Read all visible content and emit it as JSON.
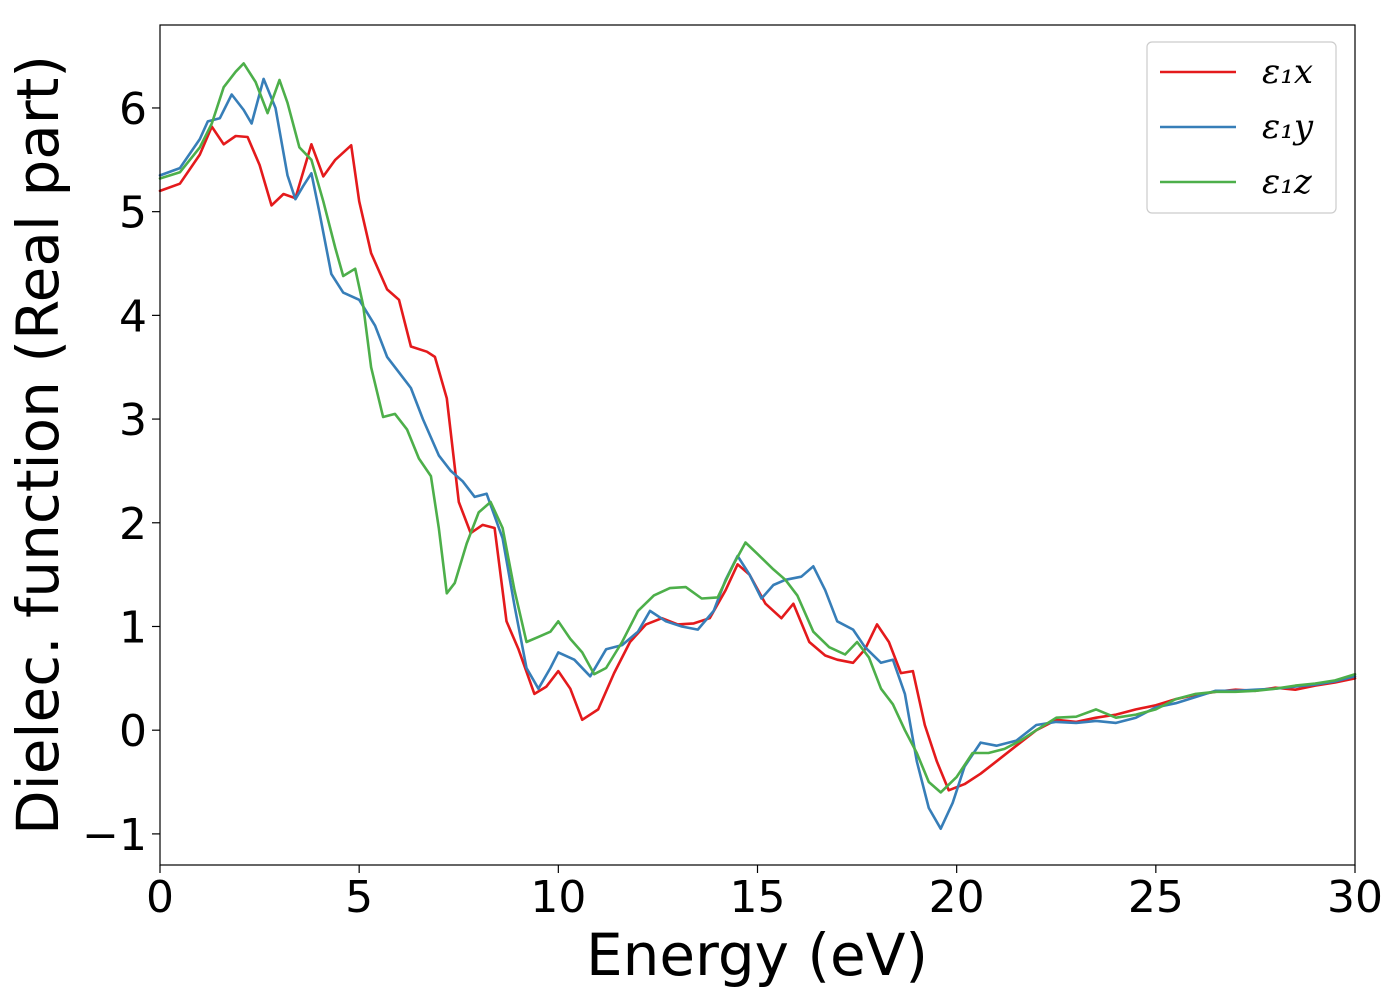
{
  "chart_data": {
    "type": "line",
    "title": "",
    "xlabel": "Energy (eV)",
    "ylabel": "Dielec. function (Real part)",
    "xlim": [
      0,
      30
    ],
    "ylim": [
      -1.3,
      6.8
    ],
    "xticks": [
      0,
      5,
      10,
      15,
      20,
      25,
      30
    ],
    "xtick_labels": [
      "0",
      "5",
      "10",
      "15",
      "20",
      "25",
      "30"
    ],
    "yticks": [
      -1,
      0,
      1,
      2,
      3,
      4,
      5,
      6
    ],
    "ytick_labels": [
      "−1",
      "0",
      "1",
      "2",
      "3",
      "4",
      "5",
      "6"
    ],
    "grid": false,
    "legend_position": "top-right",
    "series": [
      {
        "name": "ε₁x",
        "color": "#e41a1c",
        "points": [
          [
            0,
            5.2
          ],
          [
            0.5,
            5.27
          ],
          [
            1.0,
            5.55
          ],
          [
            1.3,
            5.82
          ],
          [
            1.6,
            5.65
          ],
          [
            1.9,
            5.73
          ],
          [
            2.2,
            5.72
          ],
          [
            2.5,
            5.45
          ],
          [
            2.8,
            5.06
          ],
          [
            3.1,
            5.17
          ],
          [
            3.4,
            5.13
          ],
          [
            3.8,
            5.65
          ],
          [
            4.1,
            5.34
          ],
          [
            4.4,
            5.5
          ],
          [
            4.8,
            5.64
          ],
          [
            5.0,
            5.1
          ],
          [
            5.3,
            4.6
          ],
          [
            5.7,
            4.25
          ],
          [
            6.0,
            4.15
          ],
          [
            6.3,
            3.7
          ],
          [
            6.7,
            3.65
          ],
          [
            6.9,
            3.6
          ],
          [
            7.2,
            3.2
          ],
          [
            7.5,
            2.2
          ],
          [
            7.8,
            1.9
          ],
          [
            8.1,
            1.98
          ],
          [
            8.4,
            1.95
          ],
          [
            8.7,
            1.05
          ],
          [
            9.0,
            0.78
          ],
          [
            9.4,
            0.35
          ],
          [
            9.7,
            0.42
          ],
          [
            10.0,
            0.57
          ],
          [
            10.3,
            0.4
          ],
          [
            10.6,
            0.1
          ],
          [
            11.0,
            0.2
          ],
          [
            11.4,
            0.55
          ],
          [
            11.8,
            0.85
          ],
          [
            12.2,
            1.02
          ],
          [
            12.6,
            1.08
          ],
          [
            13.0,
            1.02
          ],
          [
            13.4,
            1.03
          ],
          [
            13.8,
            1.08
          ],
          [
            14.2,
            1.35
          ],
          [
            14.5,
            1.6
          ],
          [
            14.8,
            1.5
          ],
          [
            15.2,
            1.22
          ],
          [
            15.6,
            1.08
          ],
          [
            15.9,
            1.22
          ],
          [
            16.3,
            0.85
          ],
          [
            16.7,
            0.72
          ],
          [
            17.0,
            0.68
          ],
          [
            17.4,
            0.65
          ],
          [
            17.7,
            0.78
          ],
          [
            18.0,
            1.02
          ],
          [
            18.3,
            0.85
          ],
          [
            18.6,
            0.55
          ],
          [
            18.9,
            0.57
          ],
          [
            19.2,
            0.05
          ],
          [
            19.5,
            -0.3
          ],
          [
            19.8,
            -0.58
          ],
          [
            20.2,
            -0.52
          ],
          [
            20.6,
            -0.42
          ],
          [
            21.0,
            -0.3
          ],
          [
            21.5,
            -0.15
          ],
          [
            22.0,
            0.0
          ],
          [
            22.5,
            0.1
          ],
          [
            23.0,
            0.08
          ],
          [
            23.5,
            0.12
          ],
          [
            24.0,
            0.15
          ],
          [
            24.5,
            0.2
          ],
          [
            25.0,
            0.24
          ],
          [
            25.5,
            0.3
          ],
          [
            26.0,
            0.34
          ],
          [
            26.5,
            0.37
          ],
          [
            27.0,
            0.39
          ],
          [
            27.5,
            0.38
          ],
          [
            28.0,
            0.41
          ],
          [
            28.5,
            0.39
          ],
          [
            29.0,
            0.43
          ],
          [
            29.5,
            0.46
          ],
          [
            30.0,
            0.5
          ]
        ]
      },
      {
        "name": "ε₁y",
        "color": "#377eb8",
        "points": [
          [
            0,
            5.35
          ],
          [
            0.5,
            5.42
          ],
          [
            1.0,
            5.7
          ],
          [
            1.2,
            5.87
          ],
          [
            1.5,
            5.9
          ],
          [
            1.8,
            6.13
          ],
          [
            2.1,
            5.98
          ],
          [
            2.3,
            5.85
          ],
          [
            2.6,
            6.28
          ],
          [
            2.9,
            6.0
          ],
          [
            3.2,
            5.35
          ],
          [
            3.4,
            5.12
          ],
          [
            3.6,
            5.25
          ],
          [
            3.8,
            5.37
          ],
          [
            4.0,
            5.0
          ],
          [
            4.3,
            4.4
          ],
          [
            4.6,
            4.22
          ],
          [
            5.0,
            4.15
          ],
          [
            5.4,
            3.9
          ],
          [
            5.7,
            3.6
          ],
          [
            6.0,
            3.45
          ],
          [
            6.3,
            3.3
          ],
          [
            6.6,
            3.0
          ],
          [
            7.0,
            2.65
          ],
          [
            7.3,
            2.5
          ],
          [
            7.6,
            2.4
          ],
          [
            7.9,
            2.25
          ],
          [
            8.2,
            2.28
          ],
          [
            8.6,
            1.85
          ],
          [
            8.9,
            1.2
          ],
          [
            9.2,
            0.6
          ],
          [
            9.5,
            0.4
          ],
          [
            9.8,
            0.6
          ],
          [
            10.0,
            0.75
          ],
          [
            10.4,
            0.68
          ],
          [
            10.8,
            0.52
          ],
          [
            11.2,
            0.78
          ],
          [
            11.6,
            0.82
          ],
          [
            12.0,
            0.95
          ],
          [
            12.3,
            1.15
          ],
          [
            12.7,
            1.05
          ],
          [
            13.1,
            1.0
          ],
          [
            13.5,
            0.97
          ],
          [
            13.9,
            1.15
          ],
          [
            14.2,
            1.45
          ],
          [
            14.5,
            1.68
          ],
          [
            14.8,
            1.5
          ],
          [
            15.1,
            1.27
          ],
          [
            15.4,
            1.4
          ],
          [
            15.7,
            1.45
          ],
          [
            16.1,
            1.48
          ],
          [
            16.4,
            1.58
          ],
          [
            16.7,
            1.35
          ],
          [
            17.0,
            1.05
          ],
          [
            17.4,
            0.97
          ],
          [
            17.7,
            0.8
          ],
          [
            18.1,
            0.65
          ],
          [
            18.4,
            0.68
          ],
          [
            18.7,
            0.35
          ],
          [
            19.0,
            -0.3
          ],
          [
            19.3,
            -0.75
          ],
          [
            19.6,
            -0.95
          ],
          [
            19.9,
            -0.7
          ],
          [
            20.2,
            -0.35
          ],
          [
            20.6,
            -0.12
          ],
          [
            21.0,
            -0.15
          ],
          [
            21.5,
            -0.1
          ],
          [
            22.0,
            0.05
          ],
          [
            22.5,
            0.08
          ],
          [
            23.0,
            0.07
          ],
          [
            23.5,
            0.09
          ],
          [
            24.0,
            0.07
          ],
          [
            24.5,
            0.12
          ],
          [
            25.0,
            0.22
          ],
          [
            25.5,
            0.26
          ],
          [
            26.0,
            0.32
          ],
          [
            26.5,
            0.38
          ],
          [
            27.0,
            0.38
          ],
          [
            27.5,
            0.39
          ],
          [
            28.0,
            0.4
          ],
          [
            28.5,
            0.42
          ],
          [
            29.0,
            0.44
          ],
          [
            29.5,
            0.47
          ],
          [
            30.0,
            0.52
          ]
        ]
      },
      {
        "name": "ε₁z",
        "color": "#4daf4a",
        "points": [
          [
            0,
            5.32
          ],
          [
            0.5,
            5.38
          ],
          [
            1.0,
            5.62
          ],
          [
            1.3,
            5.85
          ],
          [
            1.6,
            6.2
          ],
          [
            1.9,
            6.35
          ],
          [
            2.1,
            6.43
          ],
          [
            2.4,
            6.25
          ],
          [
            2.7,
            5.95
          ],
          [
            3.0,
            6.27
          ],
          [
            3.2,
            6.05
          ],
          [
            3.5,
            5.62
          ],
          [
            3.8,
            5.5
          ],
          [
            4.1,
            5.1
          ],
          [
            4.4,
            4.65
          ],
          [
            4.6,
            4.38
          ],
          [
            4.9,
            4.45
          ],
          [
            5.1,
            4.1
          ],
          [
            5.3,
            3.5
          ],
          [
            5.6,
            3.02
          ],
          [
            5.9,
            3.05
          ],
          [
            6.2,
            2.9
          ],
          [
            6.5,
            2.62
          ],
          [
            6.8,
            2.45
          ],
          [
            7.0,
            1.95
          ],
          [
            7.2,
            1.32
          ],
          [
            7.4,
            1.42
          ],
          [
            7.7,
            1.8
          ],
          [
            8.0,
            2.1
          ],
          [
            8.3,
            2.2
          ],
          [
            8.6,
            1.95
          ],
          [
            8.9,
            1.35
          ],
          [
            9.2,
            0.85
          ],
          [
            9.5,
            0.9
          ],
          [
            9.8,
            0.95
          ],
          [
            10.0,
            1.05
          ],
          [
            10.3,
            0.88
          ],
          [
            10.6,
            0.75
          ],
          [
            10.9,
            0.54
          ],
          [
            11.2,
            0.6
          ],
          [
            11.6,
            0.85
          ],
          [
            12.0,
            1.15
          ],
          [
            12.4,
            1.3
          ],
          [
            12.8,
            1.37
          ],
          [
            13.2,
            1.38
          ],
          [
            13.6,
            1.27
          ],
          [
            14.0,
            1.28
          ],
          [
            14.4,
            1.6
          ],
          [
            14.7,
            1.81
          ],
          [
            15.0,
            1.7
          ],
          [
            15.4,
            1.55
          ],
          [
            15.7,
            1.45
          ],
          [
            16.0,
            1.3
          ],
          [
            16.4,
            0.95
          ],
          [
            16.8,
            0.8
          ],
          [
            17.2,
            0.73
          ],
          [
            17.5,
            0.85
          ],
          [
            17.8,
            0.7
          ],
          [
            18.1,
            0.4
          ],
          [
            18.4,
            0.25
          ],
          [
            18.7,
            0.0
          ],
          [
            19.0,
            -0.22
          ],
          [
            19.3,
            -0.5
          ],
          [
            19.6,
            -0.6
          ],
          [
            20.0,
            -0.45
          ],
          [
            20.4,
            -0.22
          ],
          [
            20.8,
            -0.22
          ],
          [
            21.2,
            -0.18
          ],
          [
            21.6,
            -0.1
          ],
          [
            22.0,
            0.0
          ],
          [
            22.5,
            0.12
          ],
          [
            23.0,
            0.13
          ],
          [
            23.5,
            0.2
          ],
          [
            24.0,
            0.12
          ],
          [
            24.5,
            0.15
          ],
          [
            25.0,
            0.2
          ],
          [
            25.5,
            0.3
          ],
          [
            26.0,
            0.35
          ],
          [
            26.5,
            0.37
          ],
          [
            27.0,
            0.37
          ],
          [
            27.5,
            0.38
          ],
          [
            28.0,
            0.4
          ],
          [
            28.5,
            0.43
          ],
          [
            29.0,
            0.45
          ],
          [
            29.5,
            0.48
          ],
          [
            30.0,
            0.54
          ]
        ]
      }
    ]
  }
}
